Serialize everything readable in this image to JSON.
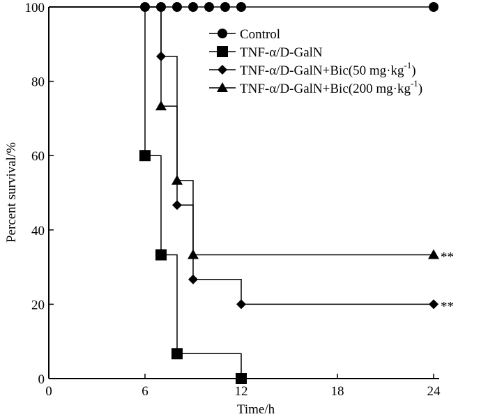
{
  "chart_data": {
    "type": "line",
    "step": true,
    "title": "",
    "xlabel": "Time/h",
    "ylabel": "Percent survival/%",
    "xlim": [
      0,
      24
    ],
    "ylim": [
      0,
      100
    ],
    "xticks": [
      0,
      6,
      12,
      18,
      24
    ],
    "yticks": [
      0,
      20,
      40,
      60,
      80,
      100
    ],
    "grid": false,
    "legend_position": "top-right",
    "series": [
      {
        "name": "Control",
        "marker": "circle",
        "x": [
          0,
          6,
          7,
          8,
          9,
          10,
          11,
          12,
          24
        ],
        "y": [
          100,
          100,
          100,
          100,
          100,
          100,
          100,
          100,
          100
        ],
        "markers_at": [
          6,
          7,
          8,
          9,
          10,
          11,
          12,
          24
        ],
        "annotation": ""
      },
      {
        "name": "TNF-α/D-GalN",
        "marker": "square",
        "x": [
          0,
          6,
          7,
          8,
          12
        ],
        "y": [
          100,
          60,
          33.3,
          6.7,
          0
        ],
        "markers_at": [
          6,
          7,
          8,
          12
        ],
        "annotation": ""
      },
      {
        "name": "TNF-α/D-GalN+Bic(50 mg·kg",
        "name_superscript": "-1",
        "name_suffix": ")",
        "marker": "diamond",
        "x": [
          0,
          7,
          8,
          9,
          12,
          24
        ],
        "y": [
          100,
          86.7,
          46.7,
          26.7,
          20,
          20
        ],
        "markers_at": [
          7,
          8,
          9,
          12,
          24
        ],
        "annotation": "**"
      },
      {
        "name": "TNF-α/D-GalN+Bic(200 mg·kg",
        "name_superscript": "-1",
        "name_suffix": ")",
        "marker": "triangle",
        "x": [
          0,
          7,
          8,
          9,
          24
        ],
        "y": [
          100,
          73.3,
          53.3,
          33.3,
          33.3
        ],
        "markers_at": [
          7,
          8,
          9,
          24
        ],
        "annotation": "**"
      }
    ]
  }
}
